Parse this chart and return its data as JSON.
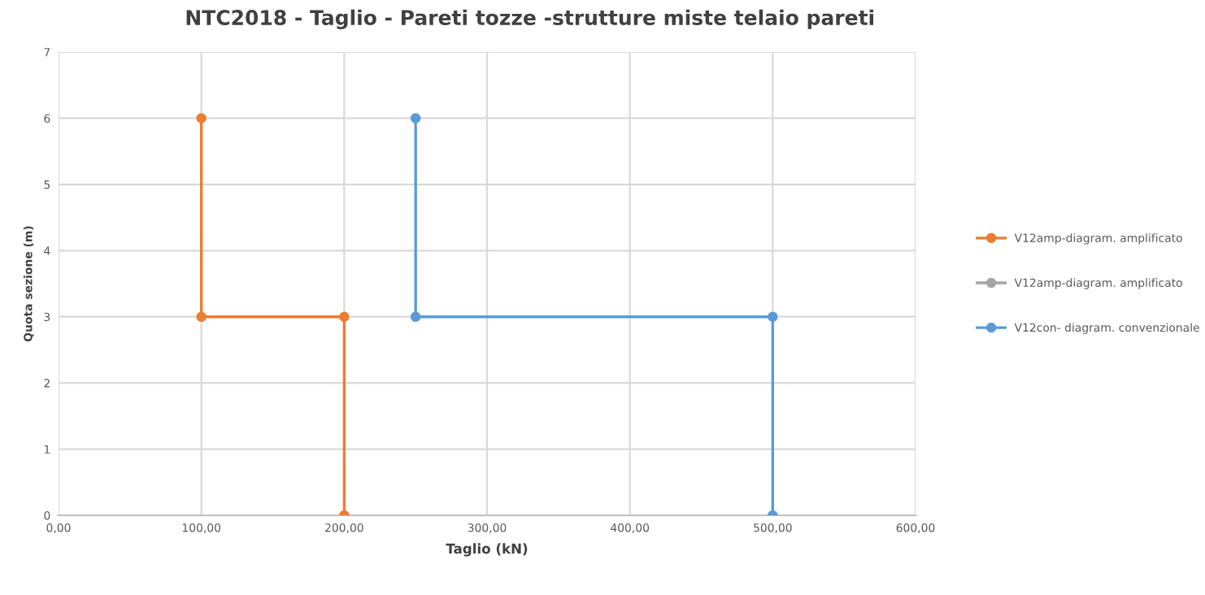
{
  "chart_data": {
    "type": "line",
    "title": "NTC2018 - Taglio - Pareti tozze -strutture miste telaio pareti",
    "xlabel": "Taglio (kN)",
    "ylabel": "Quota sezione (m)",
    "series": [
      {
        "name": "V12amp-diagram. amplificato",
        "color": "#ed7d31",
        "x": [
          100,
          100,
          200,
          200
        ],
        "values": [
          6,
          3,
          3,
          0
        ]
      },
      {
        "name": "V12amp-diagram. amplificato",
        "color": "#a5a5a5"
      },
      {
        "name": "V12con- diagram. convenzionale",
        "color": "#5b9bd5",
        "x": [
          250,
          250,
          500,
          500
        ],
        "values": [
          6,
          3,
          3,
          0
        ]
      }
    ],
    "xlim": [
      0,
      600
    ],
    "xticks": [
      {
        "value": 0,
        "label": "0,00"
      },
      {
        "value": 100,
        "label": "100,00"
      },
      {
        "value": 200,
        "label": "200,00"
      },
      {
        "value": 300,
        "label": "300,00"
      },
      {
        "value": 400,
        "label": "400,00"
      },
      {
        "value": 500,
        "label": "500,00"
      },
      {
        "value": 600,
        "label": "600,00"
      }
    ],
    "ylim": [
      0,
      7
    ],
    "yticks": [
      0,
      1,
      2,
      3,
      4,
      5,
      6,
      7
    ],
    "grid": true,
    "legend": "right",
    "marker": "circle",
    "line_style": "solid"
  }
}
